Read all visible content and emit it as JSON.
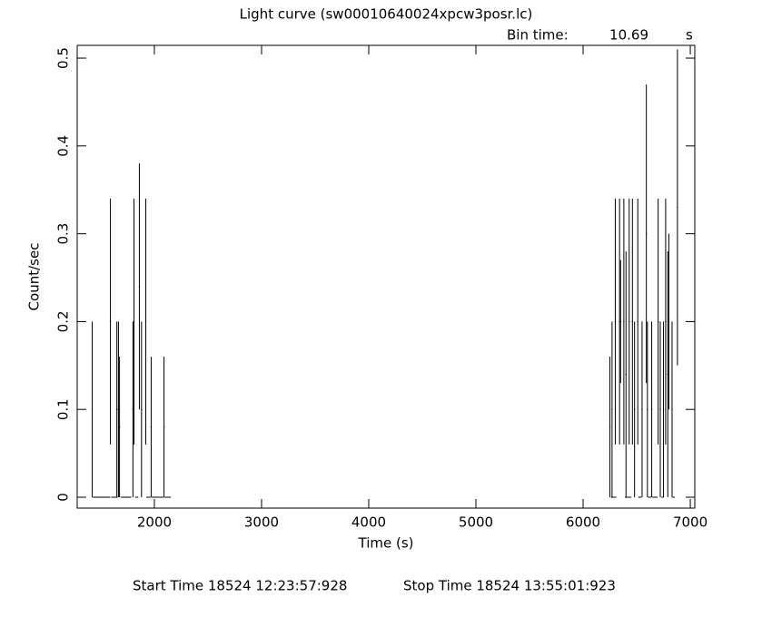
{
  "chart_data": {
    "type": "errorbar",
    "title": "Light curve (sw00010640024xpcw3posr.lc)",
    "bin_time_label": "Bin time:",
    "bin_time": 10.69,
    "bin_time_unit": "s",
    "xlabel": "Time (s)",
    "ylabel": "Count/sec",
    "start_time": "Start Time 18524 12:23:57:928",
    "stop_time": "Stop Time 18524 13:55:01:923",
    "xlim": [
      1280,
      7042
    ],
    "ylim": [
      -0.0124,
      0.5145
    ],
    "xticks": [
      2000,
      3000,
      4000,
      5000,
      6000,
      7000
    ],
    "yticks": [
      0,
      0.1,
      0.2,
      0.3,
      0.4,
      0.5
    ],
    "color": "#000000",
    "x": [
      1420,
      1507,
      1590,
      1627,
      1650,
      1665,
      1675,
      1735,
      1800,
      1810,
      1835,
      1860,
      1880,
      1920,
      1945,
      1970,
      2030,
      2090,
      2125,
      6250,
      6270,
      6285,
      6300,
      6340,
      6350,
      6380,
      6400,
      6420,
      6430,
      6460,
      6480,
      6510,
      6530,
      6550,
      6590,
      6600,
      6620,
      6640,
      6670,
      6700,
      6720,
      6740,
      6750,
      6770,
      6790,
      6800,
      6830,
      6845,
      6880
    ],
    "values": [
      0.1,
      0,
      0.2,
      0,
      0.1,
      0.1,
      0.08,
      0,
      0.1,
      0.2,
      0,
      0.24,
      0.1,
      0.2,
      0,
      0.08,
      0,
      0.08,
      0,
      0.08,
      0.1,
      0,
      0.2,
      0.2,
      0.2,
      0.2,
      0.14,
      0,
      0.2,
      0.2,
      0.1,
      0.2,
      0,
      0.1,
      0.3,
      0.1,
      0,
      0.1,
      0,
      0.2,
      0.1,
      0,
      0.1,
      0.2,
      0.14,
      0.2,
      0.1,
      0,
      0.33
    ],
    "xerr": [
      5.35,
      82,
      5.35,
      30,
      5.35,
      5.35,
      5.35,
      50,
      5.35,
      5.35,
      15,
      5.35,
      5.35,
      5.35,
      20,
      5.35,
      55,
      5.35,
      30,
      5.35,
      5.35,
      25,
      5.35,
      5.35,
      5.35,
      5.35,
      5.35,
      30,
      5.35,
      5.35,
      5.35,
      5.35,
      15,
      5.35,
      5.35,
      5.35,
      15,
      5.35,
      25,
      5.35,
      5.35,
      10,
      5.35,
      5.35,
      5.35,
      5.35,
      5.35,
      10,
      5.35
    ],
    "yerr": [
      0.1,
      0,
      0.14,
      0,
      0.1,
      0.1,
      0.08,
      0,
      0.1,
      0.14,
      0,
      0.14,
      0.1,
      0.14,
      0,
      0.08,
      0,
      0.08,
      0,
      0.08,
      0.1,
      0,
      0.14,
      0.14,
      0.07,
      0.14,
      0.14,
      0,
      0.14,
      0.14,
      0.1,
      0.14,
      0,
      0.1,
      0.17,
      0.1,
      0,
      0.1,
      0,
      0.14,
      0.1,
      0,
      0.1,
      0.14,
      0.14,
      0.1,
      0.1,
      0,
      0.18
    ]
  }
}
